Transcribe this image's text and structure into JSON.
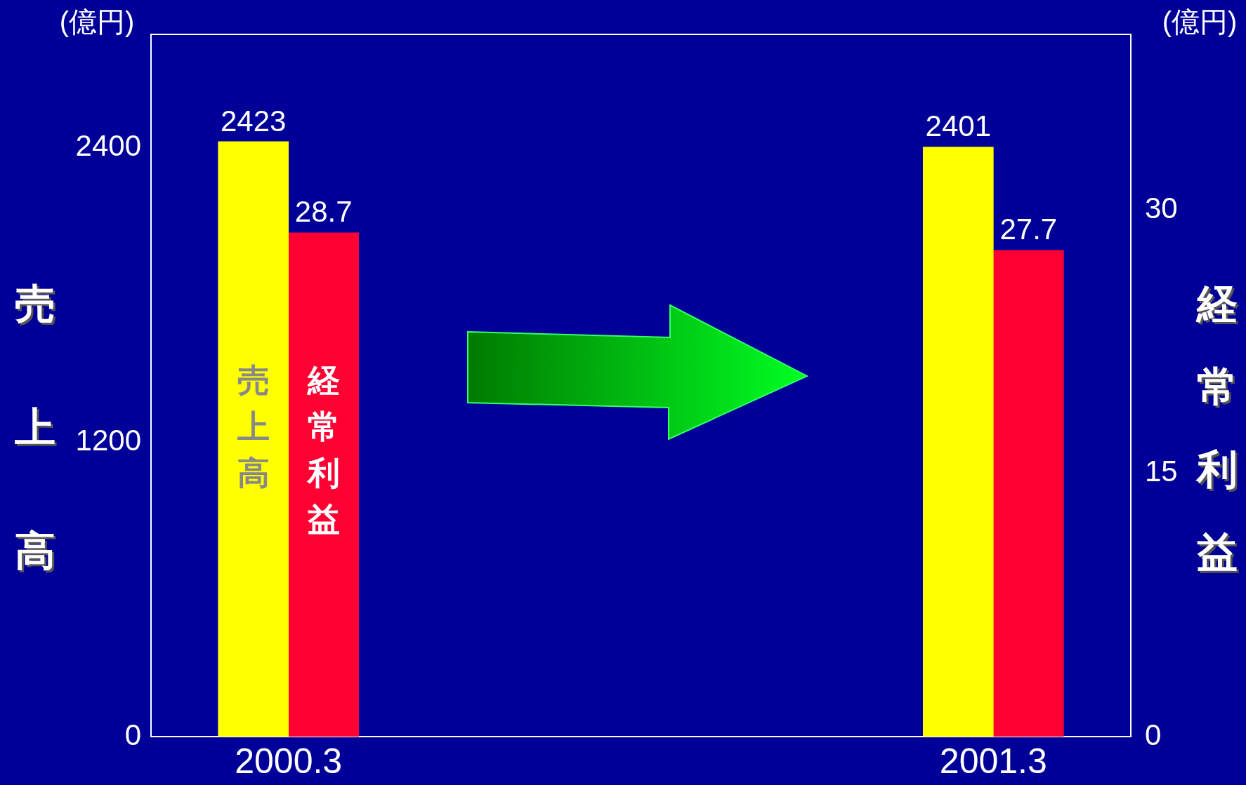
{
  "chart_data": {
    "type": "bar",
    "categories": [
      "2000.3",
      "2001.3"
    ],
    "series": [
      {
        "name": "売上高",
        "color": "#ffff00",
        "values": [
          2423,
          2401
        ],
        "axis": "y"
      },
      {
        "name": "経常利益",
        "color": "#ff0033",
        "values": [
          28.7,
          27.7
        ],
        "axis": "y2"
      }
    ],
    "ylabel": "売上高",
    "y2label": "経常利益",
    "annotations": [
      "(億円)",
      "(億円)"
    ],
    "ylim": [
      0,
      2860
    ],
    "yticks": [
      0,
      1200,
      2400
    ],
    "y2lim": [
      0,
      40
    ],
    "y2ticks": [
      0,
      15,
      30
    ],
    "data_labels": true,
    "grid": false,
    "legend": false
  }
}
